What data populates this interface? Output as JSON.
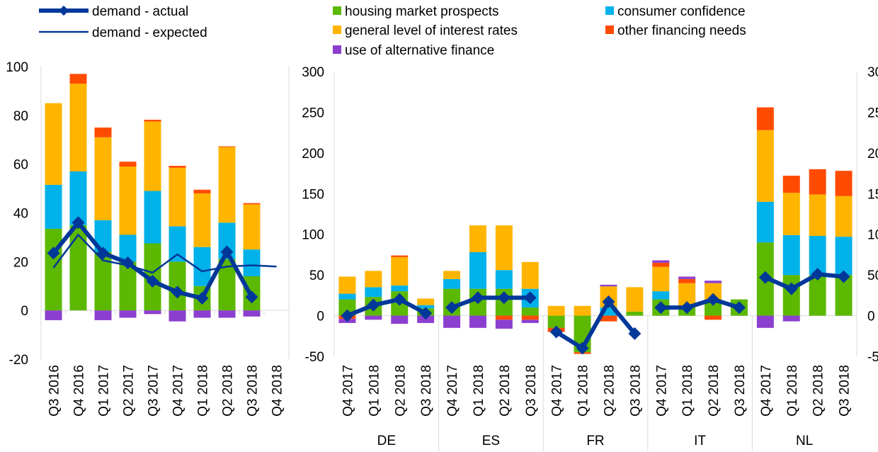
{
  "colors": {
    "housing": "#5cb800",
    "consumer": "#00b1ea",
    "interest": "#ffb400",
    "other_fin": "#ff4b00",
    "alt_fin": "#8c3fcf",
    "actual": "#003899",
    "expected": "#003899",
    "axis": "#d9d9d9"
  },
  "legend": [
    {
      "label": "demand - actual",
      "kind": "line-marker",
      "color_key": "actual"
    },
    {
      "label": "demand - expected",
      "kind": "line",
      "color_key": "expected"
    },
    {
      "label": "housing market prospects",
      "kind": "box",
      "color_key": "housing"
    },
    {
      "label": "general level of interest rates",
      "kind": "box",
      "color_key": "interest"
    },
    {
      "label": "use of alternative finance",
      "kind": "box",
      "color_key": "alt_fin"
    },
    {
      "label": "consumer confidence",
      "kind": "box",
      "color_key": "consumer"
    },
    {
      "label": "other financing needs",
      "kind": "box",
      "color_key": "other_fin"
    }
  ],
  "chart_data": [
    {
      "type": "bar",
      "stacked": true,
      "panel": "euro area",
      "ylim": [
        -20,
        100
      ],
      "yticks": [
        -20,
        0,
        20,
        40,
        60,
        80,
        100
      ],
      "categories": [
        "Q3 2016",
        "Q4 2016",
        "Q1 2017",
        "Q2 2017",
        "Q3 2017",
        "Q4 2017",
        "Q1 2018",
        "Q2 2018",
        "Q3 2018",
        "Q4 2018"
      ],
      "series": [
        {
          "name": "housing market prospects",
          "color_key": "housing",
          "values": [
            33.5,
            35,
            24,
            20,
            27.5,
            20,
            10,
            21,
            14,
            null
          ]
        },
        {
          "name": "consumer confidence",
          "color_key": "consumer",
          "values": [
            18,
            22,
            13,
            11,
            21.5,
            14.5,
            16,
            15,
            11,
            null
          ]
        },
        {
          "name": "general level of interest rates",
          "color_key": "interest",
          "values": [
            33.5,
            36,
            34,
            28,
            28.5,
            24,
            22,
            31,
            18.5,
            null
          ]
        },
        {
          "name": "other financing needs",
          "color_key": "other_fin",
          "values": [
            0,
            4,
            4,
            2,
            0.7,
            0.8,
            1.5,
            0.3,
            0.5,
            null
          ]
        },
        {
          "name": "use of alternative finance",
          "color_key": "alt_fin",
          "values": [
            -4,
            0,
            -4,
            -3,
            -1.5,
            -4.5,
            -3,
            -3,
            -2.5,
            null
          ]
        }
      ],
      "lines": [
        {
          "name": "demand - actual",
          "color_key": "actual",
          "style": "thick-marker",
          "values": [
            23.5,
            36,
            23.5,
            19.5,
            12,
            7.5,
            5,
            24,
            5.5,
            null
          ]
        },
        {
          "name": "demand - expected",
          "color_key": "expected",
          "style": "thin",
          "values": [
            17.5,
            31,
            20.5,
            18.5,
            15.5,
            23,
            16,
            18,
            18.5,
            18
          ]
        }
      ]
    },
    {
      "type": "bar",
      "stacked": true,
      "panel": "countries",
      "ylim": [
        -50,
        300
      ],
      "yticks": [
        -50,
        0,
        50,
        100,
        150,
        200,
        250,
        300
      ],
      "groups": [
        {
          "country": "DE",
          "categories": [
            "Q4 2017",
            "Q1 2018",
            "Q2 2018",
            "Q3 2018"
          ],
          "series": [
            {
              "name": "housing market prospects",
              "color_key": "housing",
              "values": [
                20,
                23,
                30,
                9
              ]
            },
            {
              "name": "consumer confidence",
              "color_key": "consumer",
              "values": [
                7,
                12,
                7,
                4
              ]
            },
            {
              "name": "general level of interest rates",
              "color_key": "interest",
              "values": [
                21,
                20,
                35,
                8
              ]
            },
            {
              "name": "other financing needs",
              "color_key": "other_fin",
              "values": [
                -4,
                0,
                2,
                0
              ]
            },
            {
              "name": "use of alternative finance",
              "color_key": "alt_fin",
              "values": [
                -5,
                -5,
                -10,
                -9
              ]
            }
          ],
          "lines": [
            {
              "name": "demand - actual",
              "color_key": "actual",
              "values": [
                0,
                13,
                20,
                3
              ]
            }
          ]
        },
        {
          "country": "ES",
          "categories": [
            "Q4 2017",
            "Q1 2018",
            "Q2 2018",
            "Q3 2018"
          ],
          "series": [
            {
              "name": "housing market prospects",
              "color_key": "housing",
              "values": [
                33,
                33,
                33,
                10
              ]
            },
            {
              "name": "consumer confidence",
              "color_key": "consumer",
              "values": [
                12,
                45,
                23,
                23
              ]
            },
            {
              "name": "general level of interest rates",
              "color_key": "interest",
              "values": [
                10,
                33,
                55,
                33
              ]
            },
            {
              "name": "other financing needs",
              "color_key": "other_fin",
              "values": [
                0,
                0,
                -5,
                -5
              ]
            },
            {
              "name": "use of alternative finance",
              "color_key": "alt_fin",
              "values": [
                -15,
                -15,
                -11,
                -4
              ]
            }
          ],
          "lines": [
            {
              "name": "demand - actual",
              "color_key": "actual",
              "values": [
                10,
                22,
                22,
                22
              ]
            }
          ]
        },
        {
          "country": "FR",
          "categories": [
            "Q4 2017",
            "Q1 2018",
            "Q2 2018",
            "Q3 2018"
          ],
          "series": [
            {
              "name": "housing market prospects",
              "color_key": "housing",
              "values": [
                -15,
                -45,
                0,
                5
              ]
            },
            {
              "name": "consumer confidence",
              "color_key": "consumer",
              "values": [
                0,
                0,
                10,
                0
              ]
            },
            {
              "name": "general level of interest rates",
              "color_key": "interest",
              "values": [
                12,
                12,
                26,
                30
              ]
            },
            {
              "name": "other financing needs",
              "color_key": "other_fin",
              "values": [
                -5,
                -2,
                -7,
                0
              ]
            },
            {
              "name": "use of alternative finance",
              "color_key": "alt_fin",
              "values": [
                0,
                0,
                2,
                0
              ]
            }
          ],
          "lines": [
            {
              "name": "demand - actual",
              "color_key": "actual",
              "values": [
                -20,
                -40,
                17,
                -22
              ]
            }
          ]
        },
        {
          "country": "IT",
          "categories": [
            "Q4 2017",
            "Q1 2018",
            "Q2 2018",
            "Q3 2018"
          ],
          "series": [
            {
              "name": "housing market prospects",
              "color_key": "housing",
              "values": [
                20,
                10,
                20,
                20
              ]
            },
            {
              "name": "consumer confidence",
              "color_key": "consumer",
              "values": [
                10,
                0,
                0,
                0
              ]
            },
            {
              "name": "general level of interest rates",
              "color_key": "interest",
              "values": [
                30,
                30,
                20,
                0
              ]
            },
            {
              "name": "other financing needs",
              "color_key": "other_fin",
              "values": [
                5,
                5,
                -5,
                0
              ]
            },
            {
              "name": "use of alternative finance",
              "color_key": "alt_fin",
              "values": [
                3,
                3,
                3,
                0
              ]
            }
          ],
          "lines": [
            {
              "name": "demand - actual",
              "color_key": "actual",
              "values": [
                10,
                10,
                20,
                10
              ]
            }
          ]
        },
        {
          "country": "NL",
          "categories": [
            "Q4 2017",
            "Q1 2018",
            "Q2 2018",
            "Q3 2018"
          ],
          "series": [
            {
              "name": "housing market prospects",
              "color_key": "housing",
              "values": [
                90,
                50,
                50,
                50
              ]
            },
            {
              "name": "consumer confidence",
              "color_key": "consumer",
              "values": [
                50,
                49,
                48,
                47
              ]
            },
            {
              "name": "general level of interest rates",
              "color_key": "interest",
              "values": [
                88,
                52,
                51,
                50
              ]
            },
            {
              "name": "other financing needs",
              "color_key": "other_fin",
              "values": [
                28,
                21,
                31,
                31
              ]
            },
            {
              "name": "use of alternative finance",
              "color_key": "alt_fin",
              "values": [
                -15,
                -7,
                0,
                0
              ]
            }
          ],
          "lines": [
            {
              "name": "demand - actual",
              "color_key": "actual",
              "values": [
                47,
                33,
                51,
                48
              ]
            }
          ]
        }
      ]
    }
  ]
}
